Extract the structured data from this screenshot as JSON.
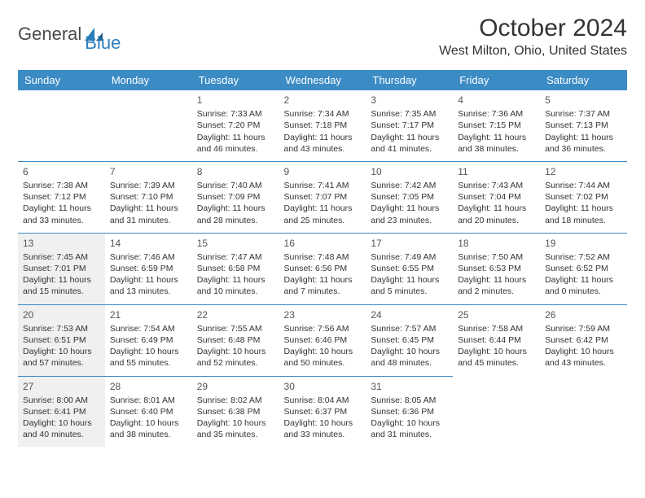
{
  "logo": {
    "text1": "General",
    "text2": "Blue"
  },
  "title": "October 2024",
  "location": "West Milton, Ohio, United States",
  "colors": {
    "header_bg": "#3b8bc4",
    "header_text": "#ffffff",
    "border": "#3b8bc4",
    "shade_bg": "#f0f0f0",
    "logo_gray": "#4a4a4a",
    "logo_blue": "#2a7fba",
    "body_text": "#333333"
  },
  "day_headers": [
    "Sunday",
    "Monday",
    "Tuesday",
    "Wednesday",
    "Thursday",
    "Friday",
    "Saturday"
  ],
  "weeks": [
    [
      null,
      null,
      {
        "n": "1",
        "sr": "Sunrise: 7:33 AM",
        "ss": "Sunset: 7:20 PM",
        "d1": "Daylight: 11 hours",
        "d2": "and 46 minutes."
      },
      {
        "n": "2",
        "sr": "Sunrise: 7:34 AM",
        "ss": "Sunset: 7:18 PM",
        "d1": "Daylight: 11 hours",
        "d2": "and 43 minutes."
      },
      {
        "n": "3",
        "sr": "Sunrise: 7:35 AM",
        "ss": "Sunset: 7:17 PM",
        "d1": "Daylight: 11 hours",
        "d2": "and 41 minutes."
      },
      {
        "n": "4",
        "sr": "Sunrise: 7:36 AM",
        "ss": "Sunset: 7:15 PM",
        "d1": "Daylight: 11 hours",
        "d2": "and 38 minutes."
      },
      {
        "n": "5",
        "sr": "Sunrise: 7:37 AM",
        "ss": "Sunset: 7:13 PM",
        "d1": "Daylight: 11 hours",
        "d2": "and 36 minutes."
      }
    ],
    [
      {
        "n": "6",
        "sr": "Sunrise: 7:38 AM",
        "ss": "Sunset: 7:12 PM",
        "d1": "Daylight: 11 hours",
        "d2": "and 33 minutes."
      },
      {
        "n": "7",
        "sr": "Sunrise: 7:39 AM",
        "ss": "Sunset: 7:10 PM",
        "d1": "Daylight: 11 hours",
        "d2": "and 31 minutes."
      },
      {
        "n": "8",
        "sr": "Sunrise: 7:40 AM",
        "ss": "Sunset: 7:09 PM",
        "d1": "Daylight: 11 hours",
        "d2": "and 28 minutes."
      },
      {
        "n": "9",
        "sr": "Sunrise: 7:41 AM",
        "ss": "Sunset: 7:07 PM",
        "d1": "Daylight: 11 hours",
        "d2": "and 25 minutes."
      },
      {
        "n": "10",
        "sr": "Sunrise: 7:42 AM",
        "ss": "Sunset: 7:05 PM",
        "d1": "Daylight: 11 hours",
        "d2": "and 23 minutes."
      },
      {
        "n": "11",
        "sr": "Sunrise: 7:43 AM",
        "ss": "Sunset: 7:04 PM",
        "d1": "Daylight: 11 hours",
        "d2": "and 20 minutes."
      },
      {
        "n": "12",
        "sr": "Sunrise: 7:44 AM",
        "ss": "Sunset: 7:02 PM",
        "d1": "Daylight: 11 hours",
        "d2": "and 18 minutes."
      }
    ],
    [
      {
        "n": "13",
        "sr": "Sunrise: 7:45 AM",
        "ss": "Sunset: 7:01 PM",
        "d1": "Daylight: 11 hours",
        "d2": "and 15 minutes.",
        "shade": true
      },
      {
        "n": "14",
        "sr": "Sunrise: 7:46 AM",
        "ss": "Sunset: 6:59 PM",
        "d1": "Daylight: 11 hours",
        "d2": "and 13 minutes."
      },
      {
        "n": "15",
        "sr": "Sunrise: 7:47 AM",
        "ss": "Sunset: 6:58 PM",
        "d1": "Daylight: 11 hours",
        "d2": "and 10 minutes."
      },
      {
        "n": "16",
        "sr": "Sunrise: 7:48 AM",
        "ss": "Sunset: 6:56 PM",
        "d1": "Daylight: 11 hours",
        "d2": "and 7 minutes."
      },
      {
        "n": "17",
        "sr": "Sunrise: 7:49 AM",
        "ss": "Sunset: 6:55 PM",
        "d1": "Daylight: 11 hours",
        "d2": "and 5 minutes."
      },
      {
        "n": "18",
        "sr": "Sunrise: 7:50 AM",
        "ss": "Sunset: 6:53 PM",
        "d1": "Daylight: 11 hours",
        "d2": "and 2 minutes."
      },
      {
        "n": "19",
        "sr": "Sunrise: 7:52 AM",
        "ss": "Sunset: 6:52 PM",
        "d1": "Daylight: 11 hours",
        "d2": "and 0 minutes."
      }
    ],
    [
      {
        "n": "20",
        "sr": "Sunrise: 7:53 AM",
        "ss": "Sunset: 6:51 PM",
        "d1": "Daylight: 10 hours",
        "d2": "and 57 minutes.",
        "shade": true
      },
      {
        "n": "21",
        "sr": "Sunrise: 7:54 AM",
        "ss": "Sunset: 6:49 PM",
        "d1": "Daylight: 10 hours",
        "d2": "and 55 minutes."
      },
      {
        "n": "22",
        "sr": "Sunrise: 7:55 AM",
        "ss": "Sunset: 6:48 PM",
        "d1": "Daylight: 10 hours",
        "d2": "and 52 minutes."
      },
      {
        "n": "23",
        "sr": "Sunrise: 7:56 AM",
        "ss": "Sunset: 6:46 PM",
        "d1": "Daylight: 10 hours",
        "d2": "and 50 minutes."
      },
      {
        "n": "24",
        "sr": "Sunrise: 7:57 AM",
        "ss": "Sunset: 6:45 PM",
        "d1": "Daylight: 10 hours",
        "d2": "and 48 minutes."
      },
      {
        "n": "25",
        "sr": "Sunrise: 7:58 AM",
        "ss": "Sunset: 6:44 PM",
        "d1": "Daylight: 10 hours",
        "d2": "and 45 minutes."
      },
      {
        "n": "26",
        "sr": "Sunrise: 7:59 AM",
        "ss": "Sunset: 6:42 PM",
        "d1": "Daylight: 10 hours",
        "d2": "and 43 minutes."
      }
    ],
    [
      {
        "n": "27",
        "sr": "Sunrise: 8:00 AM",
        "ss": "Sunset: 6:41 PM",
        "d1": "Daylight: 10 hours",
        "d2": "and 40 minutes.",
        "shade": true
      },
      {
        "n": "28",
        "sr": "Sunrise: 8:01 AM",
        "ss": "Sunset: 6:40 PM",
        "d1": "Daylight: 10 hours",
        "d2": "and 38 minutes."
      },
      {
        "n": "29",
        "sr": "Sunrise: 8:02 AM",
        "ss": "Sunset: 6:38 PM",
        "d1": "Daylight: 10 hours",
        "d2": "and 35 minutes."
      },
      {
        "n": "30",
        "sr": "Sunrise: 8:04 AM",
        "ss": "Sunset: 6:37 PM",
        "d1": "Daylight: 10 hours",
        "d2": "and 33 minutes."
      },
      {
        "n": "31",
        "sr": "Sunrise: 8:05 AM",
        "ss": "Sunset: 6:36 PM",
        "d1": "Daylight: 10 hours",
        "d2": "and 31 minutes."
      },
      null,
      null
    ]
  ]
}
